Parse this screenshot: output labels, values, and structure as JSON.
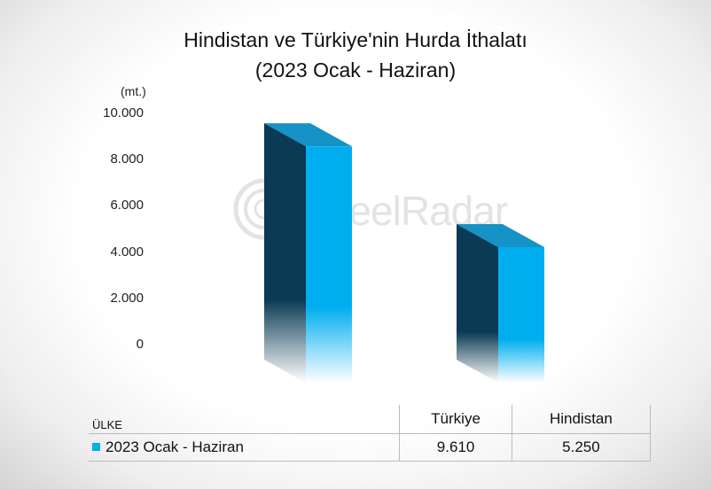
{
  "chart_data": {
    "type": "bar",
    "title_line1": "Hindistan ve Türkiye'nin Hurda İthalatı",
    "title_line2": "(2023 Ocak - Haziran)",
    "unit": "(mt.)",
    "categories": [
      "Türkiye",
      "Hindistan"
    ],
    "series": [
      {
        "name": "2023 Ocak - Haziran",
        "values": [
          9610,
          5250
        ]
      }
    ],
    "ylim": [
      0,
      10000
    ],
    "y_ticks": [
      0,
      2000,
      4000,
      6000,
      8000,
      10000
    ],
    "y_tick_labels": [
      "0",
      "2.000",
      "4.000",
      "6.000",
      "8.000",
      "10.000"
    ],
    "grid": false,
    "legend": "data-table",
    "colors": {
      "front": "#00aeef",
      "side": "#0b3a55",
      "top": "#1592c6"
    }
  },
  "table": {
    "header_label": "ÜLKE",
    "columns": [
      "Türkiye",
      "Hindistan"
    ],
    "row_label": "2023 Ocak - Haziran",
    "values": [
      "9.610",
      "5.250"
    ]
  },
  "watermark": {
    "text": "SteelRadar",
    "icon": "radar-icon"
  }
}
